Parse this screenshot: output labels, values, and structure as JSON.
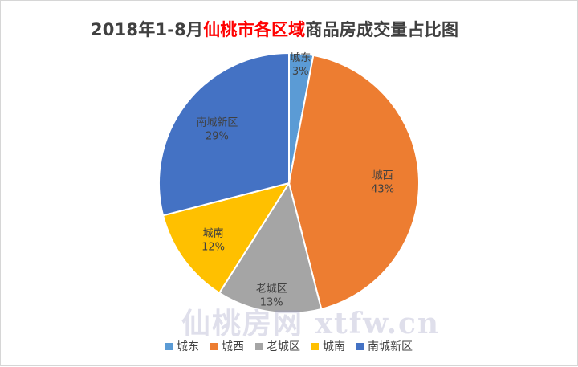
{
  "chart_data": {
    "type": "pie",
    "title": {
      "prefix": "2018年1-8月",
      "highlight": "仙桃市各区域",
      "suffix": "商品房成交量占比图"
    },
    "slices": [
      {
        "name": "城东",
        "value": 3,
        "label": "3%",
        "color": "#5b9bd5"
      },
      {
        "name": "城西",
        "value": 43,
        "label": "43%",
        "color": "#ed7d31"
      },
      {
        "name": "老城区",
        "value": 13,
        "label": "13%",
        "color": "#a5a5a5"
      },
      {
        "name": "城南",
        "value": 12,
        "label": "12%",
        "color": "#ffc000"
      },
      {
        "name": "南城新区",
        "value": 29,
        "label": "29%",
        "color": "#4472c4"
      }
    ],
    "start_angle": "12 o'clock",
    "direction": "clockwise",
    "legend_position": "bottom"
  },
  "watermark": "仙桃房网 xtfw.cn",
  "title_highlight_color": "#ff0000"
}
